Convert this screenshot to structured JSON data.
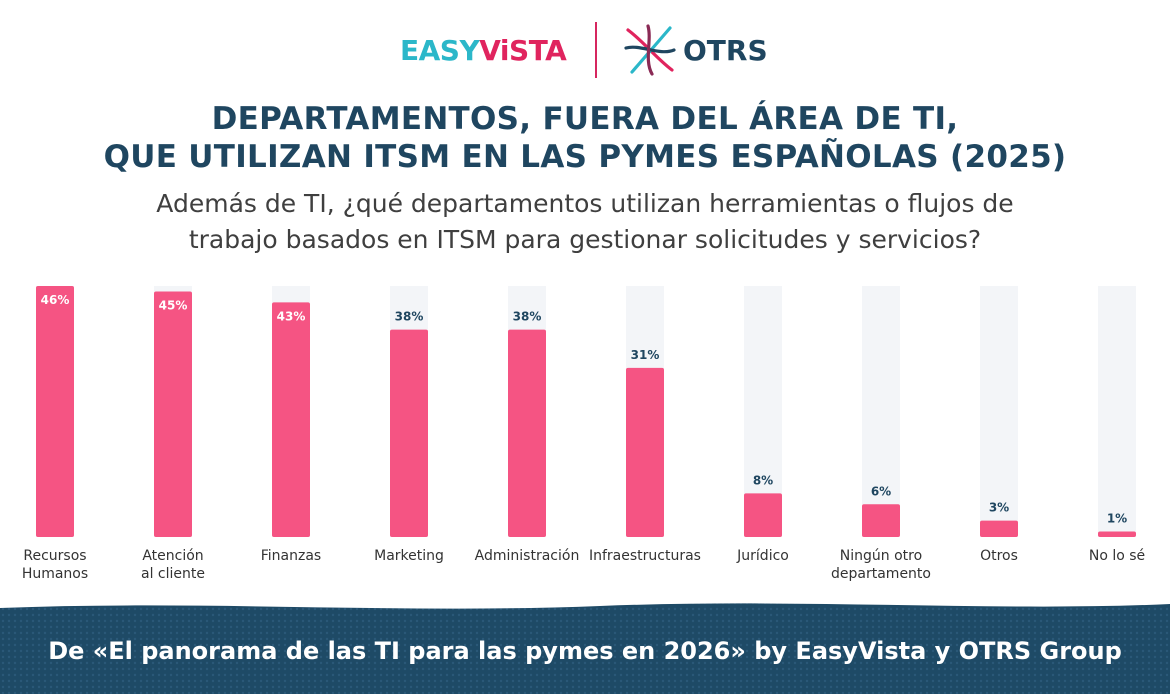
{
  "header": {
    "logo_easyvista_part1": "EASY",
    "logo_easyvista_part2": "ViSTA",
    "logo_otrs": "OTRS"
  },
  "title_line1": "DEPARTAMENTOS, FUERA DEL ÁREA DE TI,",
  "title_line2": "QUE UTILIZAN ITSM EN LAS PYMES ESPAÑOLAS (2025)",
  "subtitle_line1": "Además de TI, ¿qué departamentos utilizan herramientas o flujos de",
  "subtitle_line2": "trabajo basados en ITSM para gestionar solicitudes y servicios?",
  "footer": {
    "text": "De «El panorama de las TI para las pymes en 2026» by EasyVista y OTRS Group"
  },
  "colors": {
    "bar": "#f55483",
    "track": "#f3f5f8",
    "value_label": "#1f4660",
    "value_label_inside": "#ffffff",
    "title": "#1f4660",
    "footer_bg": "#1e4a66"
  },
  "chart_data": {
    "type": "bar",
    "title": "DEPARTAMENTOS, FUERA DEL ÁREA DE TI, QUE UTILIZAN ITSM EN LAS PYMES ESPAÑOLAS (2025)",
    "categories": [
      [
        "Recursos",
        "Humanos"
      ],
      [
        "Atención",
        "al cliente"
      ],
      [
        "Finanzas"
      ],
      [
        "Marketing"
      ],
      [
        "Administración"
      ],
      [
        "Infraestructuras"
      ],
      [
        "Jurídico"
      ],
      [
        "Ningún otro",
        "departamento"
      ],
      [
        "Otros"
      ],
      [
        "No lo sé"
      ]
    ],
    "values": [
      46,
      45,
      43,
      38,
      38,
      31,
      8,
      6,
      3,
      1
    ],
    "value_labels": [
      "46%",
      "45%",
      "43%",
      "38%",
      "38%",
      "31%",
      "8%",
      "6%",
      "3%",
      "1%"
    ],
    "ylim": [
      0,
      46
    ],
    "unit": "%",
    "grid": false,
    "legend": "none"
  }
}
